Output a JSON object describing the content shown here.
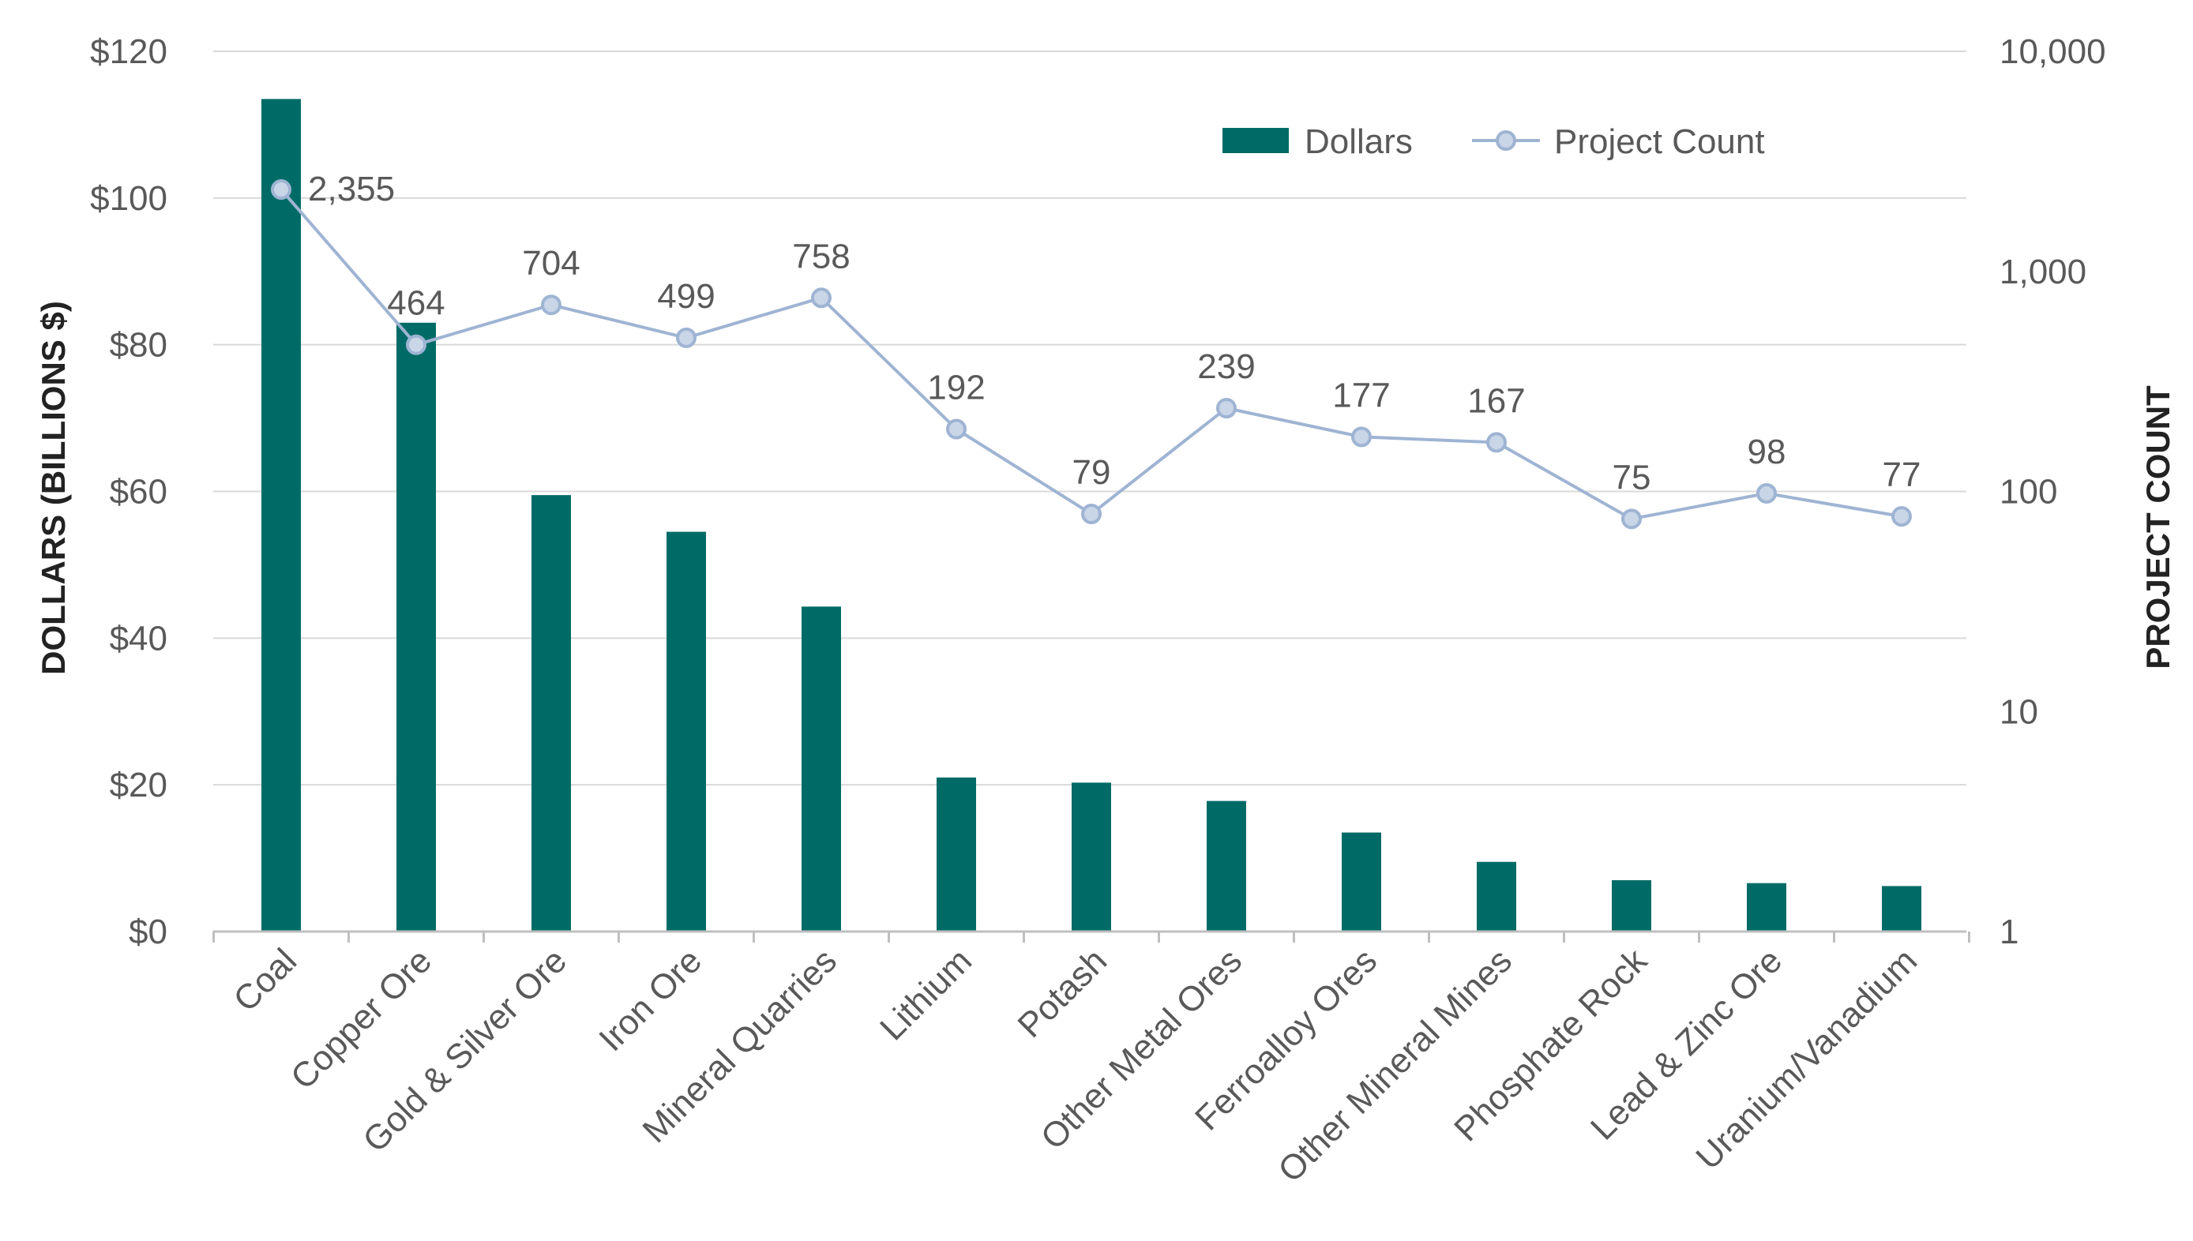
{
  "chart_data": {
    "type": "bar",
    "categories": [
      "Coal",
      "Copper Ore",
      "Gold & Silver Ore",
      "Iron Ore",
      "Mineral Quarries",
      "Lithium",
      "Potash",
      "Other Metal Ores",
      "Ferroalloy Ores",
      "Other Mineral Mines",
      "Phosphate Rock",
      "Lead & Zinc Ore",
      "Uranium/Vanadium"
    ],
    "series": [
      {
        "name": "Dollars",
        "type": "bar",
        "axis": "left",
        "values": [
          113.5,
          83,
          59.5,
          54.5,
          44.3,
          21,
          20.3,
          17.8,
          13.5,
          9.5,
          7,
          6.6,
          6.2
        ]
      },
      {
        "name": "Project Count",
        "type": "line",
        "axis": "right",
        "values": [
          2355,
          464,
          704,
          499,
          758,
          192,
          79,
          239,
          177,
          167,
          75,
          98,
          77
        ],
        "data_labels": [
          "2,355",
          "464",
          "704",
          "499",
          "758",
          "192",
          "79",
          "239",
          "177",
          "167",
          "75",
          "98",
          "77"
        ]
      }
    ],
    "ylabel": "DOLLARS (BILLIONS $)",
    "y2label": "PROJECT COUNT",
    "ylim": [
      0,
      120
    ],
    "y2lim": [
      1,
      10000
    ],
    "y2scale": "log",
    "yticks": [
      "$0",
      "$20",
      "$40",
      "$60",
      "$80",
      "$100",
      "$120"
    ],
    "y2ticks": [
      "1",
      "10",
      "100",
      "1,000",
      "10,000"
    ],
    "grid": true,
    "legend_position": "top-right",
    "colors": {
      "bar": "#006b66",
      "line": "#9fb4d3",
      "marker_fill": "#c9d6e8",
      "grid": "#d9d9d9",
      "axis": "#bfbfbf"
    }
  }
}
